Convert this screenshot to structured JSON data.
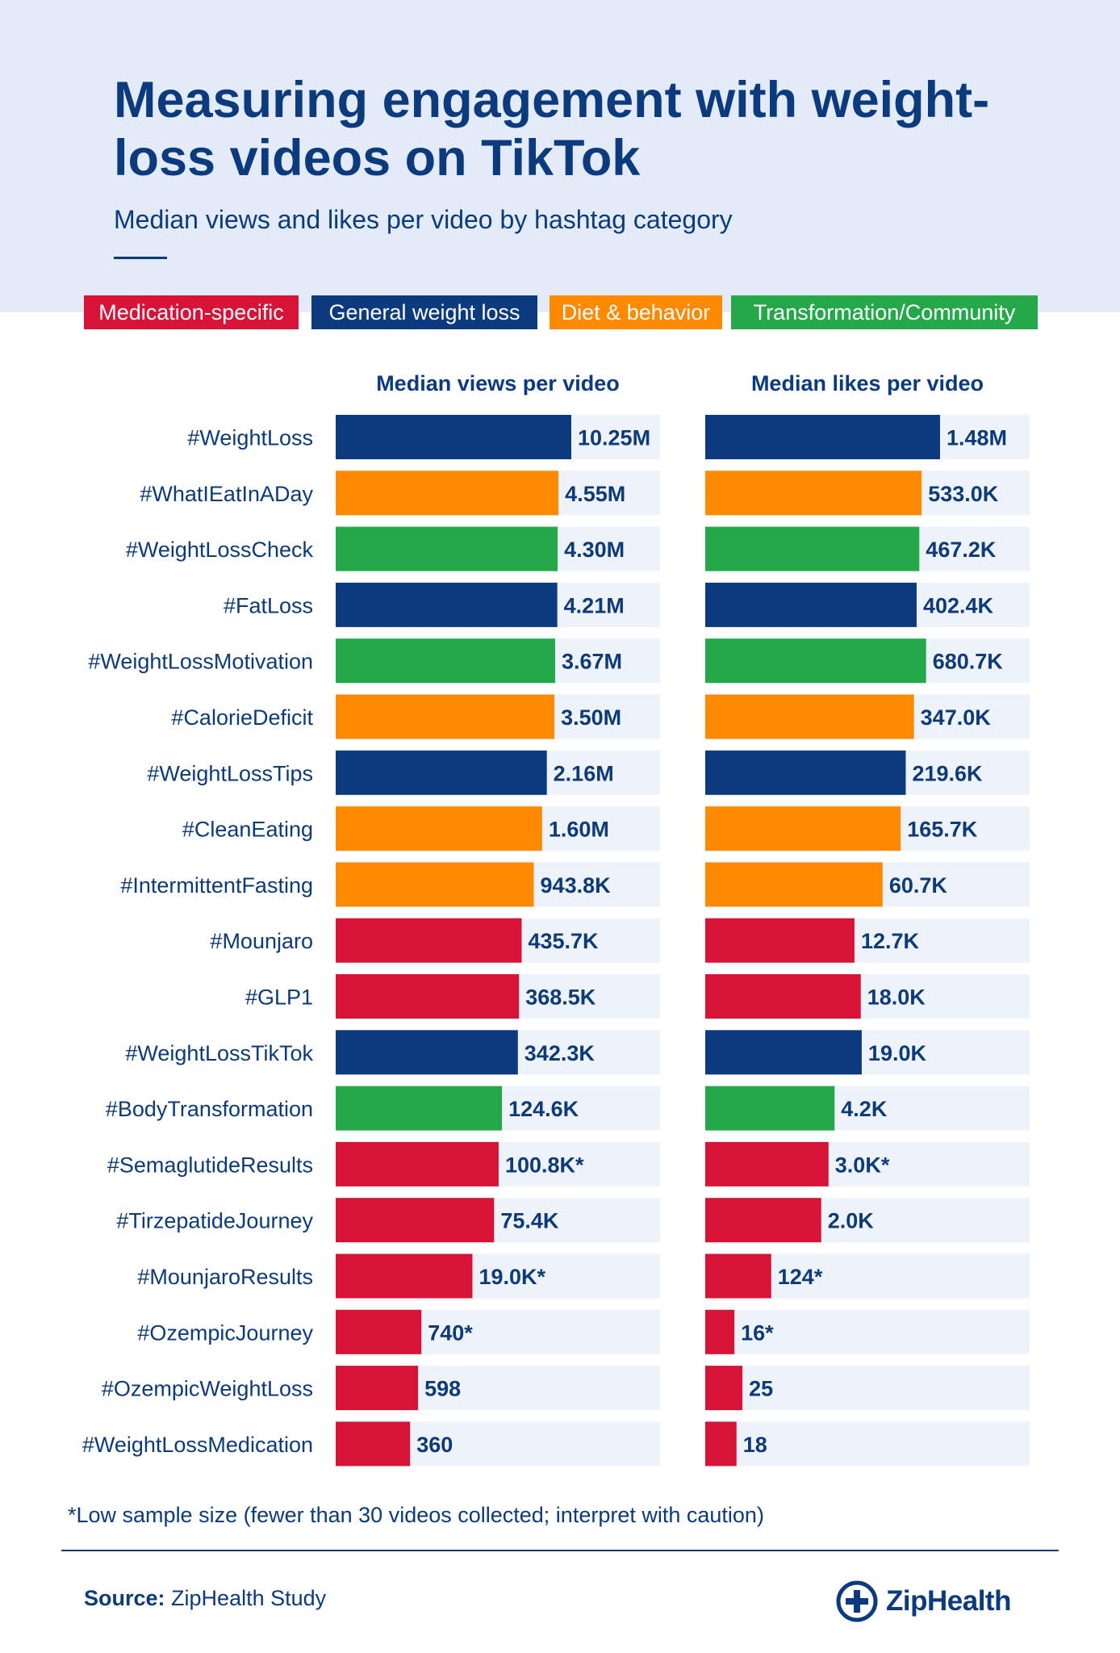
{
  "page": {
    "title": "Measuring engagement with weight-loss videos on TikTok",
    "subtitle": "Median views and likes per video by hashtag category",
    "footnote": "*Low sample size (fewer than 30 videos collected; interpret with caution)",
    "source_label": "Source:",
    "source_value": "ZipHealth Study",
    "logo_text": "ZipHealth",
    "logo_icon": "plus-circle-icon"
  },
  "legend": [
    {
      "key": "med",
      "label": "Medication-specific",
      "color": "#d71437"
    },
    {
      "key": "gen",
      "label": "General weight loss",
      "color": "#0b3a7e"
    },
    {
      "key": "diet",
      "label": "Diet & behavior",
      "color": "#ff8a00"
    },
    {
      "key": "trans",
      "label": "Transformation/Community",
      "color": "#25a84a"
    }
  ],
  "chart_data": [
    {
      "type": "bar",
      "orientation": "horizontal",
      "title": "Median views per video",
      "scale": "log",
      "categories": [
        "#WeightLoss",
        "#WhatIEatInADay",
        "#WeightLossCheck",
        "#FatLoss",
        "#WeightLossMotivation",
        "#CalorieDeficit",
        "#WeightLossTips",
        "#CleanEating",
        "#IntermittentFasting",
        "#Mounjaro",
        "#GLP1",
        "#WeightLossTikTok",
        "#BodyTransformation",
        "#SemaglutideResults",
        "#TirzepatideJourney",
        "#MounjaroResults",
        "#OzempicJourney",
        "#OzempicWeightLoss",
        "#WeightLossMedication"
      ],
      "category_groups": [
        "gen",
        "diet",
        "trans",
        "gen",
        "trans",
        "diet",
        "gen",
        "diet",
        "diet",
        "med",
        "med",
        "gen",
        "trans",
        "med",
        "med",
        "med",
        "med",
        "med",
        "med"
      ],
      "values": [
        10250000,
        4550000,
        4300000,
        4210000,
        3670000,
        3500000,
        2160000,
        1600000,
        943800,
        435700,
        368500,
        342300,
        124600,
        100800,
        75400,
        19000,
        740,
        598,
        360
      ],
      "labels": [
        "10.25M",
        "4.55M",
        "4.30M",
        "4.21M",
        "3.67M",
        "3.50M",
        "2.16M",
        "1.60M",
        "943.8K",
        "435.7K",
        "368.5K",
        "342.3K",
        "124.6K",
        "100.8K*",
        "75.4K",
        "19.0K*",
        "740*",
        "598",
        "360"
      ]
    },
    {
      "type": "bar",
      "orientation": "horizontal",
      "title": "Median likes per video",
      "scale": "log",
      "categories": [
        "#WeightLoss",
        "#WhatIEatInADay",
        "#WeightLossCheck",
        "#FatLoss",
        "#WeightLossMotivation",
        "#CalorieDeficit",
        "#WeightLossTips",
        "#CleanEating",
        "#IntermittentFasting",
        "#Mounjaro",
        "#GLP1",
        "#WeightLossTikTok",
        "#BodyTransformation",
        "#SemaglutideResults",
        "#TirzepatideJourney",
        "#MounjaroResults",
        "#OzempicJourney",
        "#OzempicWeightLoss",
        "#WeightLossMedication"
      ],
      "category_groups": [
        "gen",
        "diet",
        "trans",
        "gen",
        "trans",
        "diet",
        "gen",
        "diet",
        "diet",
        "med",
        "med",
        "gen",
        "trans",
        "med",
        "med",
        "med",
        "med",
        "med",
        "med"
      ],
      "values": [
        1480000,
        533000,
        467200,
        402400,
        680700,
        347000,
        219600,
        165700,
        60700,
        12700,
        18000,
        19000,
        4200,
        3000,
        2000,
        124,
        16,
        25,
        18
      ],
      "labels": [
        "1.48M",
        "533.0K",
        "467.2K",
        "402.4K",
        "680.7K",
        "347.0K",
        "219.6K",
        "165.7K",
        "60.7K",
        "12.7K",
        "18.0K",
        "19.0K",
        "4.2K",
        "3.0K*",
        "2.0K",
        "124*",
        "16*",
        "25",
        "18"
      ]
    }
  ]
}
